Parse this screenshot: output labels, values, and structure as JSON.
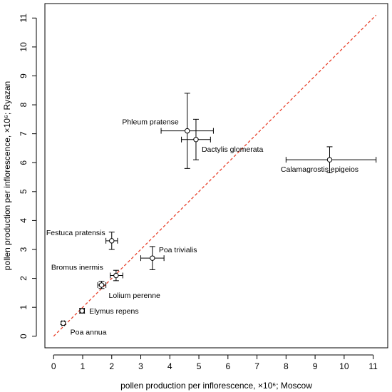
{
  "chart_data": {
    "type": "scatter",
    "xlabel": "pollen production per inflorescence, ×10⁶; Moscow",
    "ylabel": "pollen production per inflorescence, ×10⁶; Ryazan",
    "xlim": [
      -0.3,
      11.5
    ],
    "ylim": [
      -0.4,
      11.5
    ],
    "x_ticks": [
      "0",
      "1",
      "2",
      "3",
      "4",
      "5",
      "6",
      "7",
      "8",
      "9",
      "10",
      "11"
    ],
    "y_ticks": [
      "0",
      "1",
      "2",
      "3",
      "4",
      "5",
      "6",
      "7",
      "8",
      "9",
      "10",
      "11"
    ],
    "grid": false,
    "reference_line": {
      "style": "dashed",
      "color": "#e8412c",
      "x": [
        0,
        11.1
      ],
      "y": [
        0,
        11.1
      ]
    },
    "points": [
      {
        "name": "Poa annua",
        "x": 0.33,
        "y": 0.45,
        "x_err": [
          0.28,
          0.38
        ],
        "y_err": [
          0.4,
          0.5
        ]
      },
      {
        "name": "Elymus repens",
        "x": 0.98,
        "y": 0.88,
        "x_err": [
          0.9,
          1.06
        ],
        "y_err": [
          0.8,
          0.96
        ]
      },
      {
        "name": "Lolium perenne",
        "x": 1.65,
        "y": 1.77,
        "x_err": [
          1.52,
          1.8
        ],
        "y_err": [
          1.65,
          1.9
        ]
      },
      {
        "name": "Bromus inermis",
        "x": 2.15,
        "y": 2.1,
        "x_err": [
          1.95,
          2.38
        ],
        "y_err": [
          1.92,
          2.28
        ]
      },
      {
        "name": "Festuca pratensis",
        "x": 2.0,
        "y": 3.3,
        "x_err": [
          1.8,
          2.2
        ],
        "y_err": [
          3.0,
          3.6
        ]
      },
      {
        "name": "Poa trivialis",
        "x": 3.4,
        "y": 2.7,
        "x_err": [
          3.0,
          3.8
        ],
        "y_err": [
          2.3,
          3.1
        ]
      },
      {
        "name": "Phleum pratense",
        "x": 4.6,
        "y": 7.1,
        "x_err": [
          3.7,
          5.5
        ],
        "y_err": [
          5.8,
          8.4
        ]
      },
      {
        "name": "Dactylis glomerata",
        "x": 4.9,
        "y": 6.8,
        "x_err": [
          4.4,
          5.4
        ],
        "y_err": [
          6.1,
          7.5
        ]
      },
      {
        "name": "Calamagrostis epigeios",
        "x": 9.5,
        "y": 6.1,
        "x_err": [
          8.0,
          11.1
        ],
        "y_err": [
          5.65,
          6.55
        ]
      }
    ],
    "colors": {
      "reference_line": "#e8412c",
      "points": "#000000",
      "error_bars": "#000000"
    }
  }
}
